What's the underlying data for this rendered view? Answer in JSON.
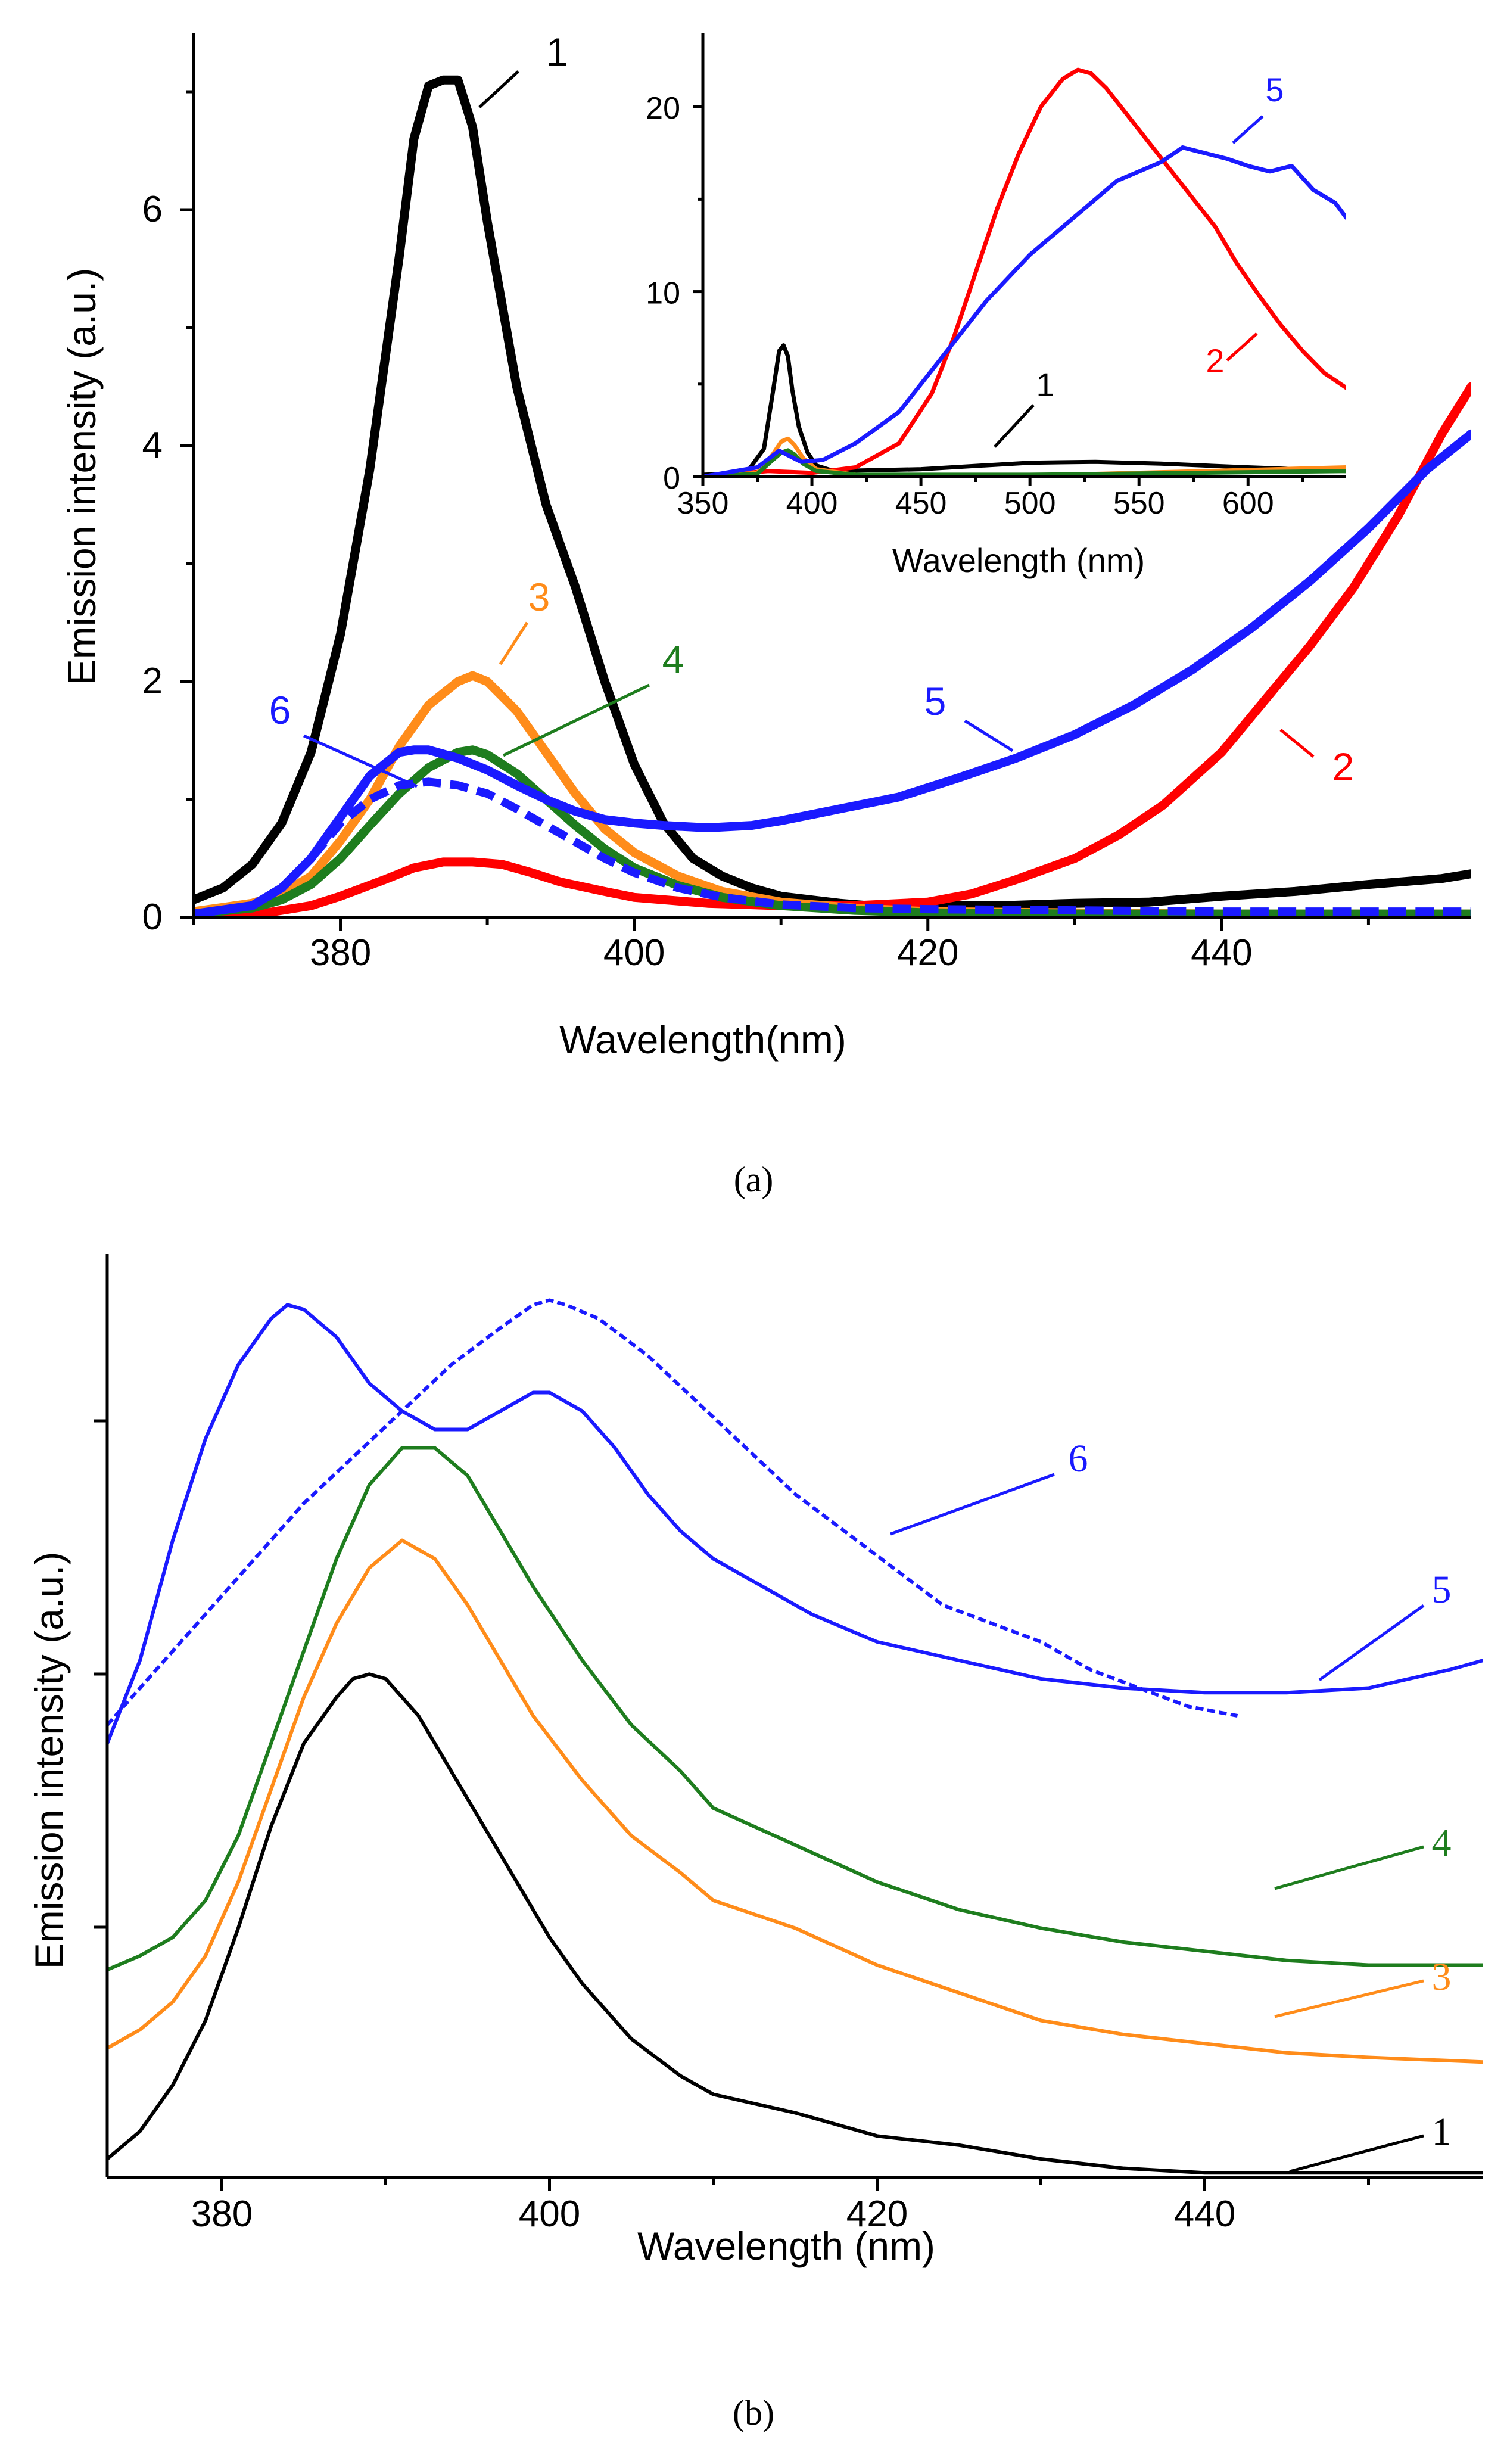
{
  "panel_labels": [
    "(a)",
    "(b)"
  ],
  "chart_data": [
    {
      "id": "a-main",
      "type": "line",
      "xlabel": "Wavelength(nm)",
      "ylabel": "Emission intensity (a.u.)",
      "xlim": [
        370,
        457
      ],
      "ylim": [
        0,
        7.5
      ],
      "xticks": [
        380,
        400,
        420,
        440
      ],
      "xminor": [
        370,
        390,
        410,
        430,
        450
      ],
      "yticks": [
        0,
        2,
        4,
        6
      ],
      "yminor": [
        1,
        3,
        5,
        7
      ],
      "series": [
        {
          "name": "1",
          "color": "#000000",
          "dash": false,
          "x": [
            370,
            372,
            374,
            376,
            378,
            380,
            382,
            384,
            385,
            386,
            387,
            388,
            389,
            390,
            392,
            394,
            396,
            398,
            400,
            402,
            404,
            406,
            408,
            410,
            412,
            414,
            416,
            418,
            420,
            425,
            430,
            435,
            440,
            445,
            450,
            455,
            457
          ],
          "y": [
            0.15,
            0.25,
            0.45,
            0.8,
            1.4,
            2.4,
            3.8,
            5.6,
            6.6,
            7.05,
            7.1,
            7.1,
            6.7,
            5.9,
            4.5,
            3.5,
            2.8,
            2.0,
            1.3,
            0.8,
            0.5,
            0.35,
            0.25,
            0.18,
            0.15,
            0.12,
            0.1,
            0.1,
            0.1,
            0.1,
            0.12,
            0.13,
            0.18,
            0.22,
            0.28,
            0.33,
            0.37
          ]
        },
        {
          "name": "2",
          "color": "#ff0000",
          "dash": false,
          "x": [
            370,
            375,
            378,
            380,
            383,
            385,
            387,
            389,
            391,
            393,
            395,
            398,
            400,
            405,
            410,
            415,
            420,
            423,
            426,
            430,
            433,
            436,
            440,
            443,
            446,
            449,
            452,
            455,
            457
          ],
          "y": [
            0.02,
            0.04,
            0.1,
            0.18,
            0.32,
            0.42,
            0.47,
            0.47,
            0.45,
            0.38,
            0.3,
            0.22,
            0.17,
            0.12,
            0.1,
            0.1,
            0.13,
            0.2,
            0.32,
            0.5,
            0.7,
            0.95,
            1.4,
            1.85,
            2.3,
            2.8,
            3.4,
            4.1,
            4.5
          ]
        },
        {
          "name": "3",
          "color": "#ff8c1a",
          "dash": false,
          "x": [
            370,
            374,
            376,
            378,
            380,
            382,
            384,
            386,
            388,
            389,
            390,
            392,
            394,
            396,
            398,
            400,
            403,
            406,
            410,
            415,
            420,
            430,
            440,
            450,
            457
          ],
          "y": [
            0.05,
            0.12,
            0.2,
            0.35,
            0.65,
            1.0,
            1.45,
            1.8,
            2.0,
            2.05,
            2.0,
            1.75,
            1.4,
            1.05,
            0.75,
            0.55,
            0.35,
            0.22,
            0.13,
            0.08,
            0.05,
            0.04,
            0.03,
            0.03,
            0.03
          ]
        },
        {
          "name": "4",
          "color": "#1e7d1e",
          "dash": false,
          "x": [
            370,
            374,
            376,
            378,
            380,
            382,
            384,
            386,
            388,
            389,
            390,
            392,
            394,
            396,
            398,
            400,
            403,
            406,
            410,
            415,
            420,
            430,
            440,
            450,
            457
          ],
          "y": [
            0.03,
            0.08,
            0.15,
            0.28,
            0.5,
            0.78,
            1.05,
            1.27,
            1.4,
            1.42,
            1.38,
            1.22,
            1.0,
            0.78,
            0.58,
            0.42,
            0.27,
            0.17,
            0.1,
            0.06,
            0.04,
            0.03,
            0.03,
            0.03,
            0.03
          ]
        },
        {
          "name": "5",
          "color": "#1a1aff",
          "dash": false,
          "x": [
            370,
            374,
            376,
            378,
            380,
            382,
            384,
            385,
            386,
            388,
            390,
            392,
            394,
            396,
            398,
            400,
            402,
            405,
            408,
            410,
            414,
            418,
            422,
            426,
            430,
            434,
            438,
            442,
            446,
            450,
            454,
            457
          ],
          "y": [
            0.03,
            0.1,
            0.25,
            0.5,
            0.85,
            1.2,
            1.4,
            1.42,
            1.42,
            1.35,
            1.25,
            1.12,
            1.0,
            0.9,
            0.83,
            0.8,
            0.78,
            0.76,
            0.78,
            0.82,
            0.92,
            1.02,
            1.18,
            1.35,
            1.55,
            1.8,
            2.1,
            2.45,
            2.85,
            3.3,
            3.8,
            4.1
          ]
        },
        {
          "name": "6",
          "color": "#1a1aff",
          "dash": true,
          "x": [
            370,
            374,
            376,
            378,
            380,
            382,
            384,
            386,
            388,
            390,
            392,
            394,
            396,
            398,
            400,
            403,
            406,
            410,
            415,
            420,
            430,
            440,
            450,
            457
          ],
          "y": [
            0.03,
            0.1,
            0.25,
            0.5,
            0.8,
            1.0,
            1.12,
            1.15,
            1.12,
            1.05,
            0.92,
            0.78,
            0.64,
            0.5,
            0.38,
            0.25,
            0.17,
            0.11,
            0.08,
            0.07,
            0.06,
            0.05,
            0.05,
            0.05
          ]
        }
      ],
      "annotations": [
        {
          "text": "1",
          "series": "1"
        },
        {
          "text": "2",
          "series": "2"
        },
        {
          "text": "3",
          "series": "3"
        },
        {
          "text": "4",
          "series": "4"
        },
        {
          "text": "5",
          "series": "5"
        },
        {
          "text": "6",
          "series": "6"
        }
      ]
    },
    {
      "id": "a-inset",
      "type": "line",
      "xlabel": "Wavelength (nm)",
      "ylabel": "",
      "xlim": [
        350,
        645
      ],
      "ylim": [
        0,
        24
      ],
      "xticks": [
        350,
        400,
        450,
        500,
        550,
        600
      ],
      "xminor": [
        375,
        425,
        475,
        525,
        575,
        625
      ],
      "yticks": [
        0,
        10,
        20
      ],
      "yminor": [
        5,
        15
      ],
      "series": [
        {
          "name": "1",
          "color": "#000000",
          "x": [
            350,
            370,
            378,
            382,
            385,
            387,
            389,
            391,
            394,
            398,
            402,
            410,
            450,
            500,
            530,
            560,
            600,
            645
          ],
          "y": [
            0.1,
            0.2,
            1.5,
            4.5,
            6.8,
            7.1,
            6.5,
            4.7,
            2.7,
            1.3,
            0.6,
            0.3,
            0.4,
            0.75,
            0.8,
            0.7,
            0.5,
            0.3
          ]
        },
        {
          "name": "2",
          "color": "#ff0000",
          "x": [
            350,
            380,
            400,
            420,
            440,
            455,
            465,
            475,
            485,
            495,
            505,
            515,
            522,
            528,
            535,
            545,
            555,
            565,
            575,
            585,
            595,
            605,
            615,
            625,
            635,
            645
          ],
          "y": [
            0.0,
            0.3,
            0.2,
            0.5,
            1.8,
            4.5,
            7.5,
            11.0,
            14.5,
            17.5,
            20.0,
            21.5,
            22.0,
            21.8,
            21.0,
            19.5,
            18.0,
            16.5,
            15.0,
            13.5,
            11.5,
            9.8,
            8.2,
            6.8,
            5.6,
            4.8
          ]
        },
        {
          "name": "3",
          "color": "#ff8c1a",
          "x": [
            350,
            375,
            382,
            386,
            389,
            392,
            396,
            402,
            420,
            500,
            645
          ],
          "y": [
            0.0,
            0.2,
            1.2,
            1.9,
            2.05,
            1.7,
            1.0,
            0.4,
            0.1,
            0.05,
            0.5
          ]
        },
        {
          "name": "4",
          "color": "#1e7d1e",
          "x": [
            350,
            375,
            382,
            386,
            389,
            392,
            396,
            402,
            420,
            500,
            645
          ],
          "y": [
            0.0,
            0.15,
            0.9,
            1.3,
            1.42,
            1.2,
            0.7,
            0.3,
            0.1,
            0.1,
            0.3
          ]
        },
        {
          "name": "5",
          "color": "#1a1aff",
          "x": [
            350,
            375,
            385,
            395,
            405,
            420,
            440,
            460,
            480,
            500,
            520,
            540,
            560,
            570,
            580,
            590,
            600,
            610,
            620,
            630,
            640,
            645
          ],
          "y": [
            0.0,
            0.5,
            1.4,
            0.8,
            0.9,
            1.8,
            3.5,
            6.5,
            9.5,
            12.0,
            14.0,
            16.0,
            17.0,
            17.8,
            17.5,
            17.2,
            16.8,
            16.5,
            16.8,
            15.5,
            14.8,
            14.0
          ]
        }
      ],
      "annotations": [
        {
          "text": "1",
          "series": "1"
        },
        {
          "text": "2",
          "series": "2"
        },
        {
          "text": "5",
          "series": "5"
        }
      ]
    },
    {
      "id": "b",
      "type": "line",
      "xlabel": "Wavelength (nm)",
      "ylabel": "Emission intensity (a.u.)",
      "xlim": [
        373,
        457
      ],
      "ylim": [
        0,
        1
      ],
      "xticks": [
        380,
        400,
        420,
        440
      ],
      "xminor": [
        390,
        410,
        430,
        450
      ],
      "yticks": [],
      "series": [
        {
          "name": "1",
          "color": "#000000",
          "dash": false,
          "x": [
            373,
            375,
            377,
            379,
            381,
            383,
            385,
            387,
            388,
            389,
            390,
            392,
            394,
            396,
            398,
            400,
            402,
            405,
            408,
            410,
            415,
            420,
            425,
            430,
            435,
            440,
            445,
            450,
            457
          ],
          "y": [
            0.02,
            0.05,
            0.1,
            0.17,
            0.27,
            0.38,
            0.47,
            0.52,
            0.54,
            0.545,
            0.54,
            0.5,
            0.44,
            0.38,
            0.32,
            0.26,
            0.21,
            0.15,
            0.11,
            0.09,
            0.07,
            0.045,
            0.035,
            0.02,
            0.01,
            0.005,
            0.005,
            0.005,
            0.005
          ]
        },
        {
          "name": "3",
          "color": "#ff8c1a",
          "dash": false,
          "x": [
            373,
            375,
            377,
            379,
            381,
            383,
            385,
            387,
            389,
            391,
            393,
            395,
            397,
            399,
            402,
            405,
            408,
            410,
            415,
            420,
            425,
            430,
            435,
            440,
            445,
            450,
            457
          ],
          "y": [
            0.14,
            0.16,
            0.19,
            0.24,
            0.32,
            0.42,
            0.52,
            0.6,
            0.66,
            0.69,
            0.67,
            0.62,
            0.56,
            0.5,
            0.43,
            0.37,
            0.33,
            0.3,
            0.27,
            0.23,
            0.2,
            0.17,
            0.155,
            0.145,
            0.135,
            0.13,
            0.125
          ]
        },
        {
          "name": "4",
          "color": "#1e7d1e",
          "dash": false,
          "x": [
            373,
            375,
            377,
            379,
            381,
            383,
            385,
            387,
            389,
            391,
            393,
            395,
            397,
            399,
            402,
            405,
            408,
            410,
            415,
            420,
            425,
            430,
            435,
            440,
            445,
            450,
            457
          ],
          "y": [
            0.225,
            0.24,
            0.26,
            0.3,
            0.37,
            0.47,
            0.57,
            0.67,
            0.75,
            0.79,
            0.79,
            0.76,
            0.7,
            0.64,
            0.56,
            0.49,
            0.44,
            0.4,
            0.36,
            0.32,
            0.29,
            0.27,
            0.255,
            0.245,
            0.235,
            0.23,
            0.23
          ]
        },
        {
          "name": "5",
          "color": "#1a1aff",
          "dash": false,
          "x": [
            373,
            375,
            377,
            379,
            381,
            383,
            384,
            385,
            387,
            389,
            391,
            393,
            395,
            397,
            399,
            400,
            402,
            404,
            406,
            408,
            410,
            413,
            416,
            420,
            425,
            430,
            435,
            440,
            445,
            450,
            455,
            457
          ],
          "y": [
            0.47,
            0.56,
            0.69,
            0.8,
            0.88,
            0.93,
            0.945,
            0.94,
            0.91,
            0.86,
            0.83,
            0.81,
            0.81,
            0.83,
            0.85,
            0.85,
            0.83,
            0.79,
            0.74,
            0.7,
            0.67,
            0.64,
            0.61,
            0.58,
            0.56,
            0.54,
            0.53,
            0.525,
            0.525,
            0.53,
            0.55,
            0.56
          ]
        },
        {
          "name": "6",
          "color": "#1a1aff",
          "dash": true,
          "x": [
            373,
            376,
            379,
            382,
            385,
            388,
            391,
            394,
            397,
            399,
            400,
            401,
            403,
            406,
            409,
            412,
            415,
            418,
            421,
            424,
            427,
            430,
            433,
            436,
            439,
            442
          ],
          "y": [
            0.49,
            0.55,
            0.61,
            0.67,
            0.73,
            0.78,
            0.83,
            0.88,
            0.92,
            0.945,
            0.95,
            0.945,
            0.93,
            0.89,
            0.84,
            0.79,
            0.74,
            0.7,
            0.66,
            0.62,
            0.6,
            0.58,
            0.55,
            0.53,
            0.51,
            0.5
          ]
        }
      ],
      "annotations": [
        {
          "text": "1",
          "series": "1"
        },
        {
          "text": "3",
          "series": "3"
        },
        {
          "text": "4",
          "series": "4"
        },
        {
          "text": "5",
          "series": "5"
        },
        {
          "text": "6",
          "series": "6"
        }
      ]
    }
  ]
}
